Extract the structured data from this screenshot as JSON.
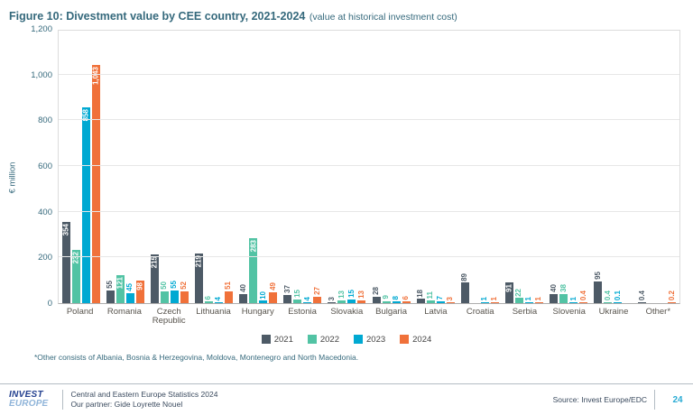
{
  "title": {
    "main": "Figure 10: Divestment value by CEE country, 2021-2024",
    "suffix": "(value at historical investment cost)"
  },
  "chart_data": {
    "type": "bar",
    "title": "Figure 10: Divestment value by CEE country, 2021-2024 (value at historical investment cost)",
    "xlabel": "",
    "ylabel": "€ million",
    "ylim": [
      0,
      1200
    ],
    "yticks": [
      0,
      200,
      400,
      600,
      800,
      1000,
      1200
    ],
    "ytick_labels": [
      "0",
      "200",
      "400",
      "600",
      "800",
      "1,000",
      "1,200"
    ],
    "grid": true,
    "legend_position": "bottom",
    "categories": [
      "Poland",
      "Romania",
      "Czech Republic",
      "Lithuania",
      "Hungary",
      "Estonia",
      "Slovakia",
      "Bulgaria",
      "Latvia",
      "Croatia",
      "Serbia",
      "Slovenia",
      "Ukraine",
      "Other*"
    ],
    "series": [
      {
        "name": "2021",
        "color": "#4D5A66",
        "values": [
          354,
          55,
          215,
          219,
          40,
          37,
          3,
          28,
          18,
          89,
          91,
          40,
          95,
          0.4
        ],
        "labels": [
          "354",
          "55",
          "215",
          "219",
          "40",
          "37",
          "3",
          "28",
          "18",
          "89",
          "91",
          "40",
          "95",
          "0.4"
        ],
        "label_inside": [
          true,
          false,
          true,
          true,
          false,
          false,
          false,
          false,
          false,
          false,
          true,
          false,
          false,
          false
        ]
      },
      {
        "name": "2022",
        "color": "#52C3A4",
        "values": [
          232,
          121,
          50,
          6,
          283,
          15,
          13,
          9,
          11,
          null,
          22,
          38,
          0.4,
          null
        ],
        "labels": [
          "232",
          "121",
          "50",
          "6",
          "283",
          "15",
          "13",
          "9",
          "11",
          "",
          "22",
          "38",
          "0.4",
          ""
        ],
        "label_inside": [
          true,
          true,
          false,
          false,
          true,
          false,
          false,
          false,
          false,
          false,
          false,
          false,
          false,
          false
        ]
      },
      {
        "name": "2023",
        "color": "#00A9D2",
        "values": [
          858,
          45,
          55,
          4,
          10,
          4,
          15,
          8,
          7,
          1,
          1,
          1,
          0.1,
          null
        ],
        "labels": [
          "858",
          "45",
          "55",
          "4",
          "10",
          "4",
          "15",
          "8",
          "7",
          "1",
          "1",
          "1",
          "0.1",
          ""
        ],
        "label_inside": [
          true,
          false,
          false,
          false,
          false,
          false,
          false,
          false,
          false,
          false,
          false,
          false,
          false,
          false
        ]
      },
      {
        "name": "2024",
        "color": "#F0713A",
        "values": [
          1043,
          98,
          52,
          51,
          49,
          27,
          13,
          6,
          3,
          1,
          1,
          0.4,
          null,
          0.2
        ],
        "labels": [
          "1,043",
          "98",
          "52",
          "51",
          "49",
          "27",
          "13",
          "6",
          "3",
          "1",
          "1",
          "0.4",
          "",
          "0.2"
        ],
        "label_inside": [
          true,
          true,
          false,
          false,
          false,
          false,
          false,
          false,
          false,
          false,
          false,
          false,
          false,
          false
        ]
      }
    ]
  },
  "footnote": "*Other consists of Albania, Bosnia & Herzegovina, Moldova, Montenegro and North Macedonia.",
  "footer": {
    "logo_line1": "INVEST",
    "logo_line2": "EUROPE",
    "line1": "Central and Eastern Europe Statistics 2024",
    "line2": "Our partner: Gide Loyrette Nouel",
    "source": "Source: Invest Europe/EDC",
    "page": "24"
  }
}
